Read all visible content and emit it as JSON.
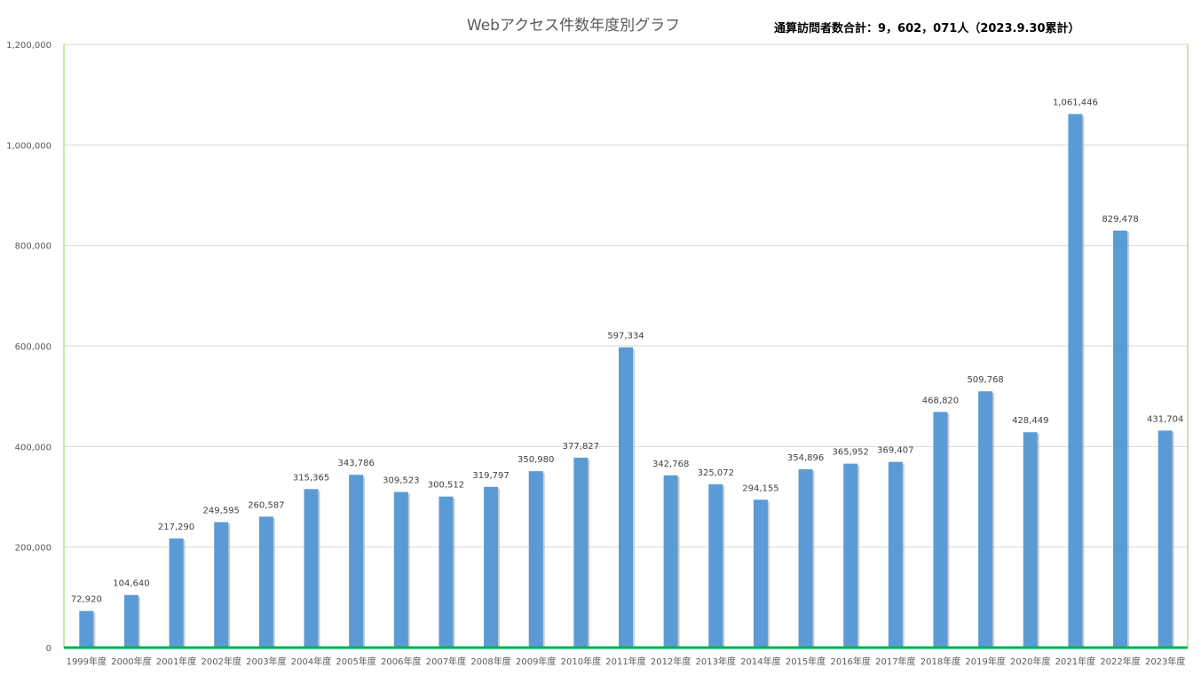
{
  "chart_data": {
    "type": "bar",
    "title": "Webアクセス件数年度別グラフ",
    "annotation": "通算訪問者数合計：9，602，071人（2023.9.30累計）",
    "categories": [
      "1999年度",
      "2000年度",
      "2001年度",
      "2002年度",
      "2003年度",
      "2004年度",
      "2005年度",
      "2006年度",
      "2007年度",
      "2008年度",
      "2009年度",
      "2010年度",
      "2011年度",
      "2012年度",
      "2013年度",
      "2014年度",
      "2015年度",
      "2016年度",
      "2017年度",
      "2018年度",
      "2019年度",
      "2020年度",
      "2021年度",
      "2022年度",
      "2023年度"
    ],
    "values": [
      72920,
      104640,
      217290,
      249595,
      260587,
      315365,
      343786,
      309523,
      300512,
      319797,
      350980,
      377827,
      597334,
      342768,
      325072,
      294155,
      354896,
      365952,
      369407,
      468820,
      509768,
      428449,
      1061446,
      829478,
      431704
    ],
    "data_labels": [
      "72,920",
      "104,640",
      "217,290",
      "249,595",
      "260,587",
      "315,365",
      "343,786",
      "309,523",
      "300,512",
      "319,797",
      "350,980",
      "377,827",
      "597,334",
      "342,768",
      "325,072",
      "294,155",
      "354,896",
      "365,952",
      "369,407",
      "468,820",
      "509,768",
      "428,449",
      "1,061,446",
      "829,478",
      "431,704"
    ],
    "yticks": [
      0,
      200000,
      400000,
      600000,
      800000,
      1000000,
      1200000
    ],
    "ytick_labels": [
      "0",
      "200,000",
      "400,000",
      "600,000",
      "800,000",
      "1,000,000",
      "1,200,000"
    ],
    "ylim": [
      0,
      1200000
    ],
    "xlabel": "",
    "ylabel": "",
    "grid": true,
    "legend": "none",
    "colors": {
      "bar": "#5b9bd5",
      "bar_shadow": "#9a9a9a",
      "grid": "#d9d9d9",
      "plot_border": "#92d050",
      "axis": "#00b050"
    }
  }
}
